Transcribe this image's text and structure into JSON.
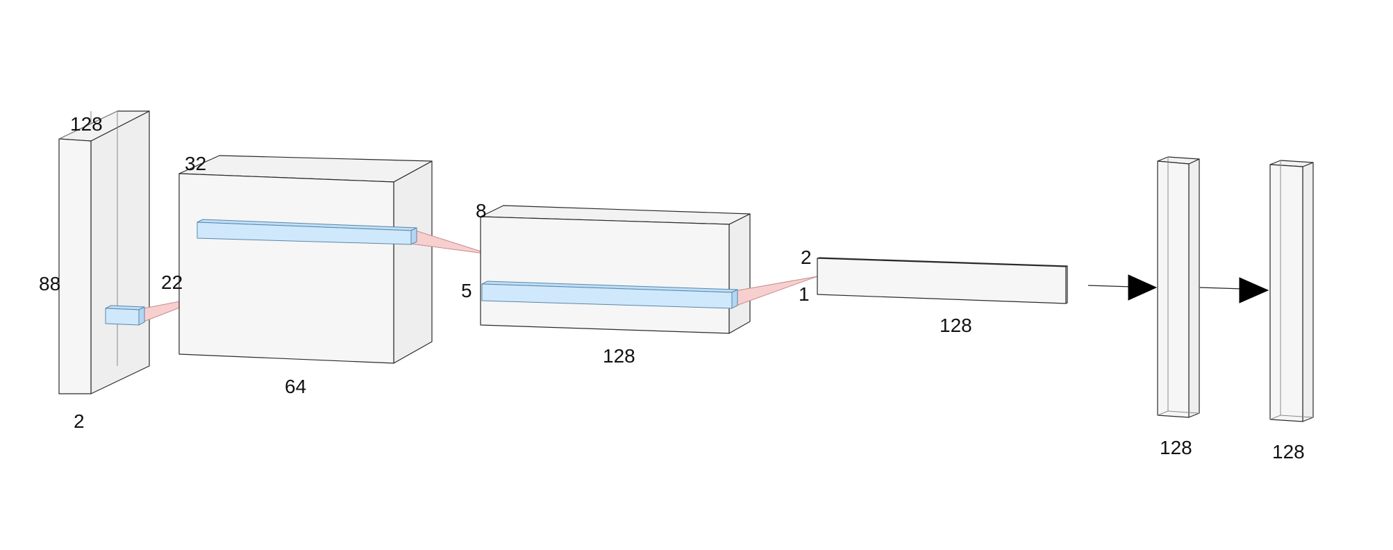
{
  "labels": {
    "input_height": "128",
    "input_width": "88",
    "input_depth": "2",
    "input_kernel_size": "22",
    "conv1_height": "32",
    "conv1_width": "64",
    "conv2_height": "8",
    "conv2_kernel_size": "5",
    "conv2_width": "128",
    "conv3_height": "2",
    "conv3_kernel_size": "1",
    "conv3_width": "128",
    "dense1_units": "128",
    "dense2_units": "128"
  },
  "colors": {
    "volume_fill": "#f6f6f6",
    "volume_stroke": "#2a2a2a",
    "kernel_fill": "#cfe8fb",
    "projection_fill": "#f7cfcf",
    "arrow": "#000000"
  }
}
